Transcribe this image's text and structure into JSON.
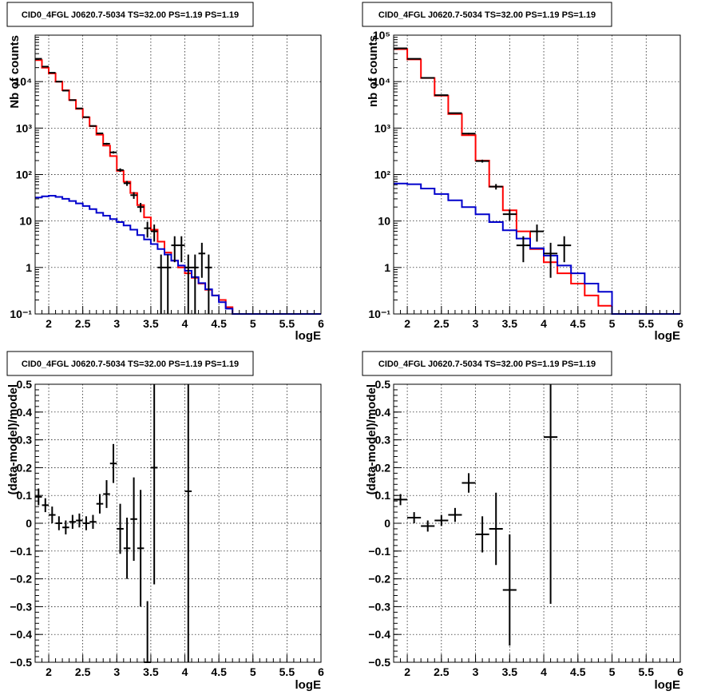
{
  "figure": {
    "background": "#ffffff"
  },
  "colors": {
    "data": "#000000",
    "model": "#ff0000",
    "background_model": "#0000cc",
    "grid": "#000000"
  },
  "chart_data": [
    {
      "id": "top-left",
      "type": "histogram-log",
      "title": "CID0_4FGL J0620.7-5034 TS=32.00 PS=1.19 PS=1.19",
      "xlabel": "logE",
      "ylabel": "Nb of counts",
      "xlim": [
        1.8,
        6.0
      ],
      "ylim": [
        0.1,
        100000
      ],
      "log_y": true,
      "grid": true,
      "xticks": [
        2,
        2.5,
        3,
        3.5,
        4,
        4.5,
        5,
        5.5,
        6
      ],
      "xtick_labels": [
        "2",
        "2.5",
        "3",
        "3.5",
        "4",
        "4.5",
        "5",
        "5.5",
        "6"
      ],
      "yticks": [
        0.1,
        1,
        10,
        100,
        1000,
        10000
      ],
      "ytick_labels": [
        "10⁻¹",
        "1",
        "10",
        "10²",
        "10³",
        "10⁴"
      ],
      "bin_edges": [
        1.8,
        1.9,
        2.0,
        2.1,
        2.2,
        2.3,
        2.4,
        2.5,
        2.6,
        2.7,
        2.8,
        2.9,
        3.0,
        3.1,
        3.2,
        3.3,
        3.4,
        3.5,
        3.6,
        3.7,
        3.8,
        3.9,
        4.0,
        4.1,
        4.2,
        4.3,
        4.4,
        4.5,
        4.6,
        4.7,
        4.8,
        4.9,
        5.0,
        5.1,
        5.2,
        5.3,
        5.4,
        5.5,
        5.6,
        5.7,
        5.8,
        5.9,
        6.0
      ],
      "series": [
        {
          "name": "",
          "style": "step",
          "color": "#ff0000",
          "values": [
            29000,
            20000,
            15000,
            10000,
            6500,
            4000,
            2600,
            1700,
            1100,
            720,
            420,
            250,
            120,
            70,
            40,
            22,
            12,
            6.5,
            3.6,
            2.1,
            1.4,
            1.0,
            0.75,
            0.6,
            0.45,
            0.33,
            0.25,
            0.2,
            0.14,
            0.1,
            0.1,
            0.1,
            0.1,
            0.1,
            0.1,
            0.1,
            0.1,
            0.1,
            0.1,
            0.1,
            0.1,
            0.1
          ]
        },
        {
          "name": "",
          "style": "step",
          "color": "#0000cc",
          "values": [
            32,
            34,
            35,
            33,
            30,
            27,
            24,
            21,
            18,
            15,
            13,
            11,
            9.5,
            8,
            6.5,
            5,
            4,
            3.2,
            2.5,
            1.9,
            1.4,
            1.1,
            0.85,
            0.62,
            0.46,
            0.34,
            0.25,
            0.18,
            0.13,
            0.1,
            0.1,
            0.1,
            0.1,
            0.1,
            0.1,
            0.1,
            0.1,
            0.1,
            0.1,
            0.1,
            0.1,
            0.1
          ]
        }
      ],
      "points": [
        {
          "x": 1.85,
          "y": 31000,
          "err": 180
        },
        {
          "x": 1.95,
          "y": 21000,
          "err": 150
        },
        {
          "x": 2.05,
          "y": 15500,
          "err": 125
        },
        {
          "x": 2.15,
          "y": 10000,
          "err": 100
        },
        {
          "x": 2.25,
          "y": 6400,
          "err": 80
        },
        {
          "x": 2.35,
          "y": 4000,
          "err": 63
        },
        {
          "x": 2.45,
          "y": 2650,
          "err": 51
        },
        {
          "x": 2.55,
          "y": 1720,
          "err": 41
        },
        {
          "x": 2.65,
          "y": 1110,
          "err": 33
        },
        {
          "x": 2.75,
          "y": 770,
          "err": 28
        },
        {
          "x": 2.85,
          "y": 460,
          "err": 21
        },
        {
          "x": 2.95,
          "y": 300,
          "err": 17
        },
        {
          "x": 3.05,
          "y": 125,
          "err": 11
        },
        {
          "x": 3.15,
          "y": 65,
          "err": 8
        },
        {
          "x": 3.25,
          "y": 36,
          "err": 6
        },
        {
          "x": 3.35,
          "y": 20,
          "err": 4.5
        },
        {
          "x": 3.45,
          "y": 7,
          "err": 2.6
        },
        {
          "x": 3.55,
          "y": 6,
          "err": 2.4
        },
        {
          "x": 3.65,
          "y": 1,
          "err": 0.9
        },
        {
          "x": 3.75,
          "y": 1,
          "err": 0.9
        },
        {
          "x": 3.85,
          "y": 3,
          "err": 1.7
        },
        {
          "x": 3.95,
          "y": 3,
          "err": 1.7
        },
        {
          "x": 4.05,
          "y": 1,
          "err": 0.9
        },
        {
          "x": 4.15,
          "y": 1,
          "err": 0.9
        },
        {
          "x": 4.25,
          "y": 2,
          "err": 1.4
        },
        {
          "x": 4.35,
          "y": 1,
          "err": 0.9
        }
      ],
      "point_half_width": 0.05
    },
    {
      "id": "top-right",
      "type": "histogram-log",
      "title": "CID0_4FGL J0620.7-5034 TS=32.00 PS=1.19 PS=1.19",
      "xlabel": "logE",
      "ylabel": "nb of counts",
      "xlim": [
        1.8,
        6.0
      ],
      "ylim": [
        0.1,
        100000
      ],
      "log_y": true,
      "grid": true,
      "xticks": [
        2,
        2.5,
        3,
        3.5,
        4,
        4.5,
        5,
        5.5,
        6
      ],
      "xtick_labels": [
        "2",
        "2.5",
        "3",
        "3.5",
        "4",
        "4.5",
        "5",
        "5.5",
        "6"
      ],
      "yticks": [
        0.1,
        1,
        10,
        100,
        1000,
        10000,
        100000
      ],
      "ytick_labels": [
        "10⁻¹",
        "1",
        "10",
        "10²",
        "10³",
        "10⁴",
        "10⁵"
      ],
      "bin_edges": [
        1.8,
        2.0,
        2.2,
        2.4,
        2.6,
        2.8,
        3.0,
        3.2,
        3.4,
        3.6,
        3.8,
        4.0,
        4.2,
        4.4,
        4.6,
        4.8,
        5.0,
        5.2,
        5.4,
        5.6,
        5.8,
        6.0
      ],
      "series": [
        {
          "name": "",
          "style": "step",
          "color": "#ff0000",
          "values": [
            50000,
            30000,
            12000,
            5000,
            2000,
            700,
            200,
            55,
            17,
            6,
            2.5,
            1.3,
            0.75,
            0.45,
            0.25,
            0.15,
            0.1,
            0.1,
            0.1,
            0.1,
            0.1
          ]
        },
        {
          "name": "",
          "style": "step",
          "color": "#0000cc",
          "values": [
            64,
            62,
            50,
            38,
            28,
            20,
            14,
            9.5,
            6.3,
            4.2,
            2.6,
            1.8,
            1.1,
            0.75,
            0.45,
            0.3,
            0.1,
            0.1,
            0.1,
            0.1,
            0.1
          ]
        }
      ],
      "points": [
        {
          "x": 1.9,
          "y": 52000,
          "err": 230
        },
        {
          "x": 2.1,
          "y": 31000,
          "err": 180
        },
        {
          "x": 2.3,
          "y": 12000,
          "err": 110
        },
        {
          "x": 2.5,
          "y": 5100,
          "err": 71
        },
        {
          "x": 2.7,
          "y": 2100,
          "err": 46
        },
        {
          "x": 2.9,
          "y": 760,
          "err": 28
        },
        {
          "x": 3.1,
          "y": 195,
          "err": 14
        },
        {
          "x": 3.3,
          "y": 55,
          "err": 7.4
        },
        {
          "x": 3.5,
          "y": 14,
          "err": 3.7
        },
        {
          "x": 3.7,
          "y": 3,
          "err": 1.7
        },
        {
          "x": 3.9,
          "y": 6,
          "err": 2.4
        },
        {
          "x": 4.1,
          "y": 2,
          "err": 1.4
        },
        {
          "x": 4.3,
          "y": 3,
          "err": 1.7
        }
      ],
      "point_half_width": 0.1
    },
    {
      "id": "bottom-left",
      "type": "residual",
      "title": "CID0_4FGL J0620.7-5034 TS=32.00 PS=1.19 PS=1.19",
      "xlabel": "logE",
      "ylabel": "(data-model)/model",
      "xlim": [
        1.8,
        6.0
      ],
      "ylim": [
        -0.5,
        0.5
      ],
      "grid": true,
      "xticks": [
        2,
        2.5,
        3,
        3.5,
        4,
        4.5,
        5,
        5.5,
        6
      ],
      "xtick_labels": [
        "2",
        "2.5",
        "3",
        "3.5",
        "4",
        "4.5",
        "5",
        "5.5",
        "6"
      ],
      "yticks": [
        -0.5,
        -0.4,
        -0.3,
        -0.2,
        -0.1,
        0,
        0.1,
        0.2,
        0.3,
        0.4,
        0.5
      ],
      "ytick_labels": [
        "−0.5",
        "−0.4",
        "−0.3",
        "−0.2",
        "−0.1",
        "0",
        "0.1",
        "0.2",
        "0.3",
        "0.4",
        "0.5"
      ],
      "points": [
        {
          "x": 1.85,
          "y": 0.095,
          "err": 0.03
        },
        {
          "x": 1.95,
          "y": 0.065,
          "err": 0.025
        },
        {
          "x": 2.05,
          "y": 0.03,
          "err": 0.03
        },
        {
          "x": 2.15,
          "y": 0.0,
          "err": 0.025
        },
        {
          "x": 2.25,
          "y": -0.015,
          "err": 0.025
        },
        {
          "x": 2.35,
          "y": 0.005,
          "err": 0.025
        },
        {
          "x": 2.45,
          "y": 0.01,
          "err": 0.025
        },
        {
          "x": 2.55,
          "y": 0.0,
          "err": 0.025
        },
        {
          "x": 2.65,
          "y": 0.005,
          "err": 0.025
        },
        {
          "x": 2.75,
          "y": 0.07,
          "err": 0.035
        },
        {
          "x": 2.85,
          "y": 0.105,
          "err": 0.05
        },
        {
          "x": 2.95,
          "y": 0.215,
          "err": 0.07
        },
        {
          "x": 3.05,
          "y": -0.02,
          "err": 0.09
        },
        {
          "x": 3.15,
          "y": -0.09,
          "err": 0.11
        },
        {
          "x": 3.25,
          "y": 0.015,
          "err": 0.15
        },
        {
          "x": 3.35,
          "y": -0.09,
          "err": 0.21
        },
        {
          "x": 3.45,
          "y": -0.5,
          "err": 0.22
        },
        {
          "x": 3.55,
          "y": 0.2,
          "err": 0.42
        },
        {
          "x": 4.05,
          "y": 0.115,
          "err": 0.9
        }
      ],
      "point_half_width": 0.05
    },
    {
      "id": "bottom-right",
      "type": "residual",
      "title": "CID0_4FGL J0620.7-5034 TS=32.00 PS=1.19 PS=1.19",
      "xlabel": "logE",
      "ylabel": "(data-model)/model",
      "xlim": [
        1.8,
        6.0
      ],
      "ylim": [
        -0.5,
        0.5
      ],
      "grid": true,
      "xticks": [
        2,
        2.5,
        3,
        3.5,
        4,
        4.5,
        5,
        5.5,
        6
      ],
      "xtick_labels": [
        "2",
        "2.5",
        "3",
        "3.5",
        "4",
        "4.5",
        "5",
        "5.5",
        "6"
      ],
      "yticks": [
        -0.5,
        -0.4,
        -0.3,
        -0.2,
        -0.1,
        0,
        0.1,
        0.2,
        0.3,
        0.4,
        0.5
      ],
      "ytick_labels": [
        "−0.5",
        "−0.4",
        "−0.3",
        "−0.2",
        "−0.1",
        "0",
        "0.1",
        "0.2",
        "0.3",
        "0.4",
        "0.5"
      ],
      "points": [
        {
          "x": 1.9,
          "y": 0.085,
          "err": 0.02
        },
        {
          "x": 2.1,
          "y": 0.02,
          "err": 0.02
        },
        {
          "x": 2.3,
          "y": -0.01,
          "err": 0.02
        },
        {
          "x": 2.5,
          "y": 0.01,
          "err": 0.02
        },
        {
          "x": 2.7,
          "y": 0.03,
          "err": 0.025
        },
        {
          "x": 2.9,
          "y": 0.145,
          "err": 0.035
        },
        {
          "x": 3.1,
          "y": -0.04,
          "err": 0.065
        },
        {
          "x": 3.3,
          "y": -0.02,
          "err": 0.13
        },
        {
          "x": 3.5,
          "y": -0.24,
          "err": 0.2
        },
        {
          "x": 4.1,
          "y": 0.31,
          "err": 0.6
        }
      ],
      "point_half_width": 0.1
    }
  ]
}
